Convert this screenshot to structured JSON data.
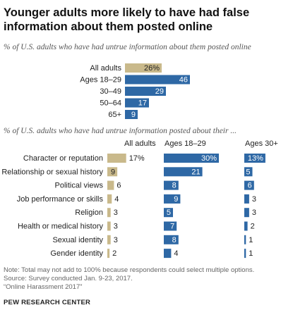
{
  "title": "Younger adults more likely to have had false information about them posted online",
  "chart_data": [
    {
      "type": "bar",
      "orientation": "horizontal",
      "subtitle": "% of U.S. adults who have had untrue information about them posted online",
      "categories": [
        "All adults",
        "Ages 18–29",
        "30–49",
        "50–64",
        "65+"
      ],
      "values": [
        26,
        46,
        29,
        17,
        9
      ],
      "value_labels": [
        "26%",
        "46",
        "29",
        "17",
        "9"
      ],
      "colors": [
        "#c9b98b",
        "#2e68a5",
        "#2e68a5",
        "#2e68a5",
        "#2e68a5"
      ]
    },
    {
      "type": "bar",
      "orientation": "horizontal",
      "subtitle": "% of U.S. adults who have had untrue information posted about their ...",
      "categories": [
        "Character or reputation",
        "Relationship or sexual history",
        "Political views",
        "Job performance or skills",
        "Religion",
        "Health or medical history",
        "Sexual identity",
        "Gender identity"
      ],
      "series": [
        {
          "name": "All adults",
          "values": [
            17,
            9,
            6,
            4,
            3,
            3,
            3,
            2
          ],
          "value_labels": [
            "17%",
            "9",
            "6",
            "4",
            "3",
            "3",
            "3",
            "2"
          ],
          "color": "#c9b98b"
        },
        {
          "name": "Ages 18–29",
          "values": [
            30,
            21,
            8,
            9,
            5,
            7,
            8,
            4
          ],
          "value_labels": [
            "30%",
            "21",
            "8",
            "9",
            "5",
            "7",
            "8",
            "4"
          ],
          "color": "#2e68a5"
        },
        {
          "name": "Ages 30+",
          "values": [
            13,
            5,
            6,
            3,
            3,
            2,
            1,
            1
          ],
          "value_labels": [
            "13%",
            "5",
            "6",
            "3",
            "3",
            "2",
            "1",
            "1"
          ],
          "color": "#2e68a5"
        }
      ]
    }
  ],
  "notes": [
    "Note: Total may not add to 100% because respondents could select multiple options.",
    "Source: Survey conducted Jan. 9-23, 2017.",
    "“Online Harassment 2017”"
  ],
  "brand": "PEW RESEARCH CENTER"
}
